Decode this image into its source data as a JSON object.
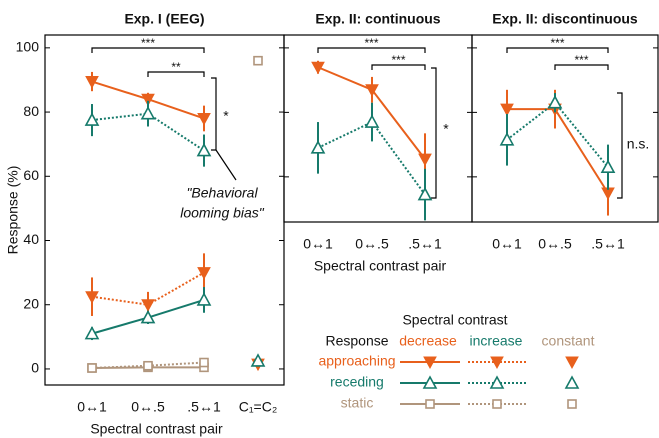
{
  "chart_data": [
    {
      "type": "line",
      "title": "Exp. I (EEG)",
      "ylabel": "Response (%)",
      "xlabel": "Spectral contrast pair",
      "categories": [
        "0↔1",
        "0↔.5",
        ".5↔1",
        "C₁=C₂"
      ],
      "ylim": [
        -5,
        104
      ],
      "yticks": [
        0,
        20,
        40,
        60,
        80,
        100
      ],
      "series": [
        {
          "color": "#e8601c",
          "dash": false,
          "marker": "v",
          "values": [
            89.5,
            84,
            78,
            null
          ],
          "errors": [
            3,
            2,
            4,
            null
          ]
        },
        {
          "color": "#167a6b",
          "dash": true,
          "marker": "^",
          "values": [
            77.5,
            79.5,
            68,
            null
          ],
          "errors": [
            5,
            4,
            5,
            null
          ]
        },
        {
          "color": "#e8601c",
          "dash": true,
          "marker": "v",
          "values": [
            22.5,
            20,
            30,
            null
          ],
          "errors": [
            6,
            4,
            6,
            null
          ]
        },
        {
          "color": "#167a6b",
          "dash": false,
          "marker": "^",
          "values": [
            11,
            16,
            21.5,
            null
          ],
          "errors": [
            2,
            2,
            4,
            null
          ]
        },
        {
          "color": "#b0957c",
          "dash": false,
          "marker": "s",
          "values": [
            0.3,
            0.5,
            0.5,
            null
          ],
          "errors": [
            0.5,
            0.5,
            0.5,
            null
          ]
        },
        {
          "color": "#b0957c",
          "dash": true,
          "marker": "s",
          "values": [
            0.3,
            1,
            2,
            null
          ],
          "errors": [
            0.5,
            0.5,
            0.5,
            null
          ]
        },
        {
          "color": "#e8601c",
          "dash": false,
          "marker": "v",
          "values": [
            null,
            null,
            null,
            1.5
          ],
          "errors": [
            null,
            null,
            null,
            0.5
          ]
        },
        {
          "color": "#167a6b",
          "dash": false,
          "marker": "^",
          "values": [
            null,
            null,
            null,
            2.5
          ],
          "errors": [
            null,
            null,
            null,
            0.5
          ]
        },
        {
          "color": "#b0957c",
          "dash": false,
          "marker": "s",
          "values": [
            null,
            null,
            null,
            96
          ],
          "errors": [
            null,
            null,
            null,
            0.5
          ]
        }
      ],
      "brackets": [
        {
          "label": "***",
          "pair": [
            0,
            2
          ]
        },
        {
          "label": "**",
          "pair": [
            1,
            2
          ]
        }
      ],
      "vertical_bracket": {
        "label": "*"
      },
      "annotation": [
        "\"Behavioral",
        "looming bias\""
      ]
    },
    {
      "type": "line",
      "title": "Exp. II: continuous",
      "xlabel": "Spectral contrast pair",
      "categories": [
        "0↔1",
        "0↔.5",
        ".5↔1"
      ],
      "ylim": [
        46,
        104
      ],
      "yticks": [
        60,
        80,
        100
      ],
      "series": [
        {
          "color": "#e8601c",
          "dash": false,
          "marker": "v",
          "values": [
            94,
            87,
            65.5
          ],
          "errors": [
            2,
            4,
            8
          ]
        },
        {
          "color": "#167a6b",
          "dash": true,
          "marker": "^",
          "values": [
            69,
            77,
            54.5
          ],
          "errors": [
            8,
            6,
            8
          ]
        }
      ],
      "brackets": [
        {
          "label": "***",
          "pair": [
            0,
            2
          ]
        },
        {
          "label": "***",
          "pair": [
            1,
            2
          ]
        }
      ],
      "vertical_bracket": {
        "label": "*"
      }
    },
    {
      "type": "line",
      "title": "Exp. II: discontinuous",
      "categories": [
        "0↔1",
        "0↔.5",
        ".5↔1"
      ],
      "ylim": [
        46,
        104
      ],
      "yticks": [
        60,
        80,
        100
      ],
      "series": [
        {
          "color": "#e8601c",
          "dash": false,
          "marker": "v",
          "values": [
            81,
            81,
            55
          ],
          "errors": [
            6,
            6,
            7
          ]
        },
        {
          "color": "#167a6b",
          "dash": true,
          "marker": "^",
          "values": [
            71.5,
            83,
            63
          ],
          "errors": [
            8,
            3,
            7
          ]
        }
      ],
      "brackets": [
        {
          "label": "***",
          "pair": [
            0,
            2
          ]
        },
        {
          "label": "***",
          "pair": [
            1,
            2
          ]
        }
      ],
      "vertical_bracket": {
        "label": "n.s."
      }
    }
  ],
  "legend": {
    "title": "Spectral contrast",
    "header": "Response",
    "columns": [
      "decrease",
      "increase",
      "constant"
    ],
    "rows": [
      "approaching",
      "receding",
      "static"
    ]
  }
}
